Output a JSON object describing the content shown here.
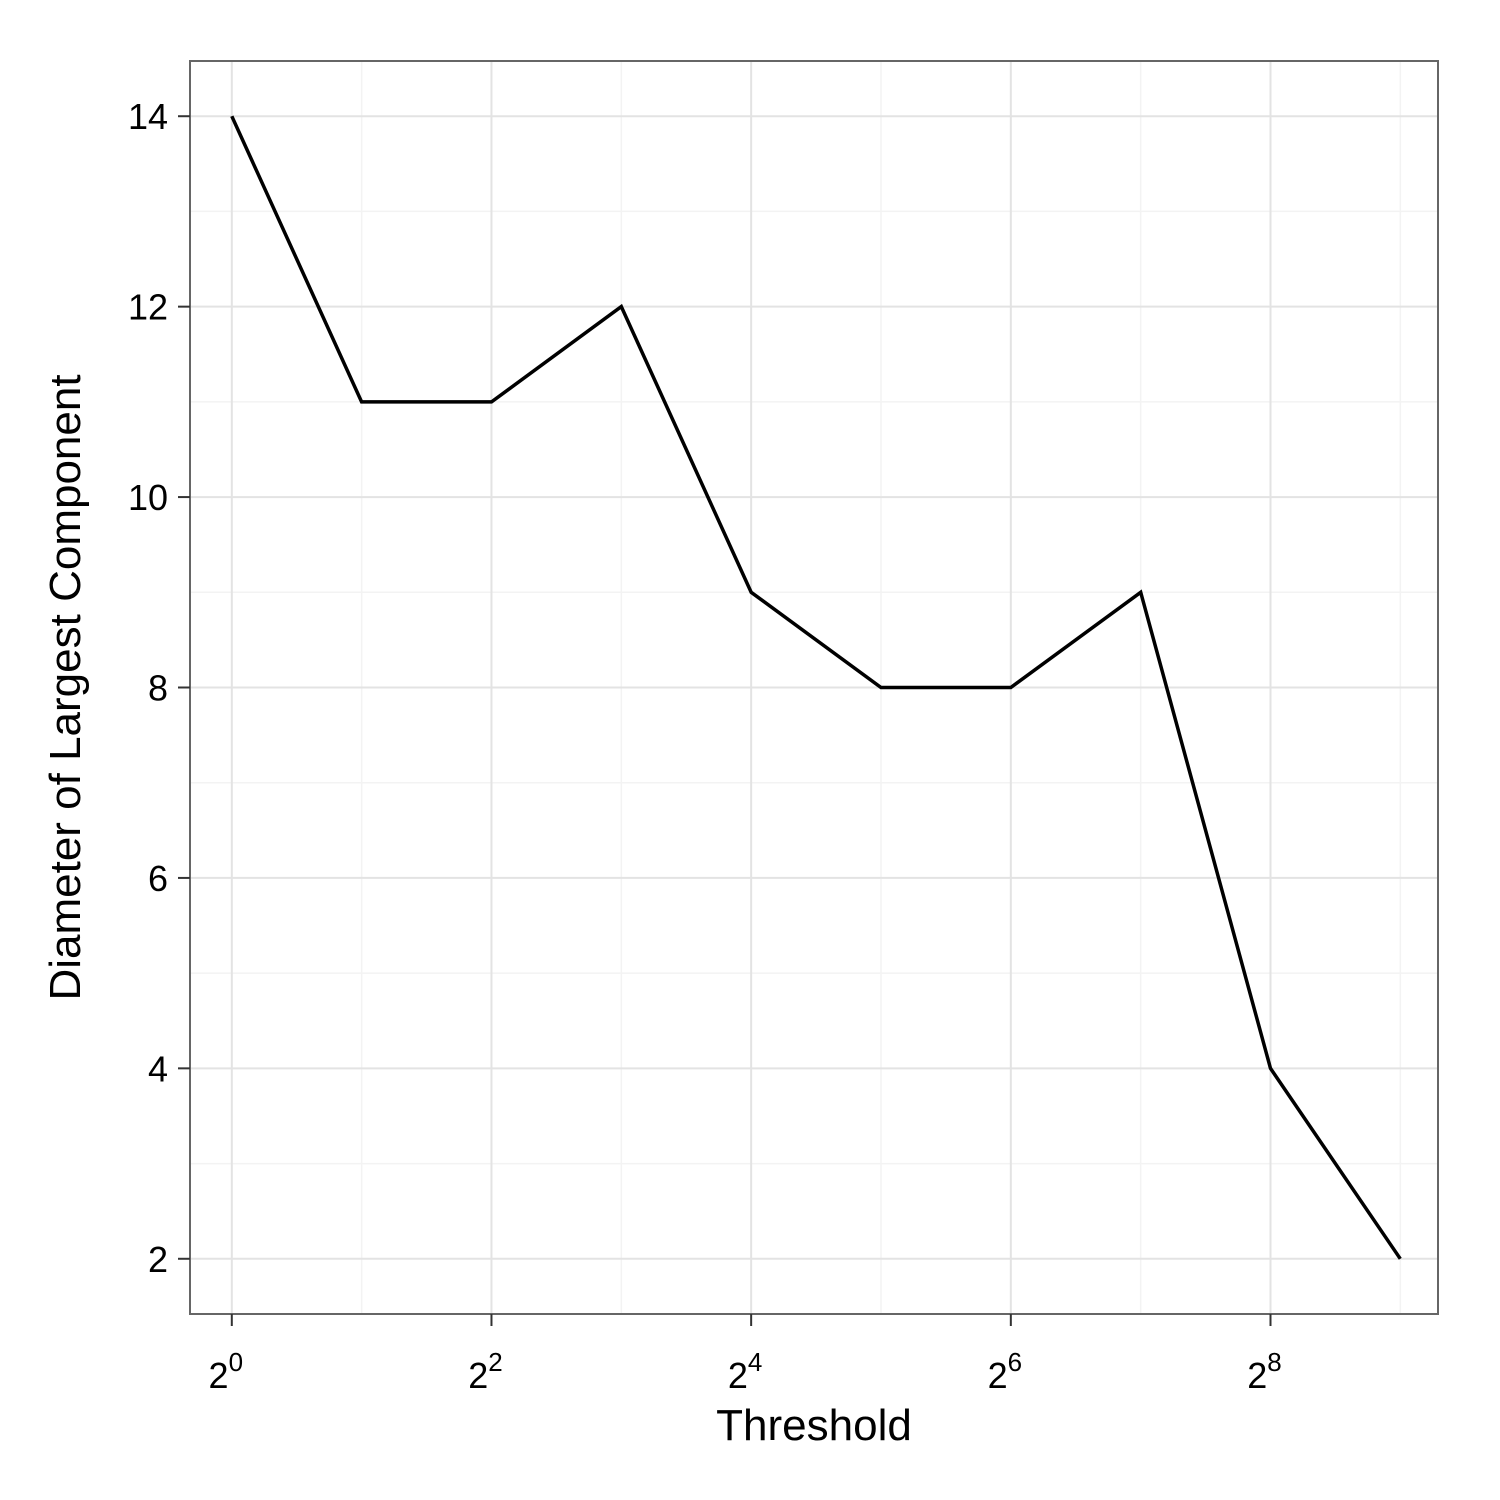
{
  "chart_data": {
    "type": "line",
    "title": "",
    "xlabel": "Threshold",
    "ylabel": "Diameter of Largest Component",
    "x_scale": "log2",
    "x_base": 2,
    "x_tick_exponents": [
      "0",
      "2",
      "4",
      "6",
      "8"
    ],
    "x_tick_values": [
      1,
      4,
      16,
      64,
      256
    ],
    "y_ticks": [
      "2",
      "4",
      "6",
      "8",
      "10",
      "12",
      "14"
    ],
    "xlim": [
      0.8,
      626
    ],
    "ylim": [
      1.42,
      14.58
    ],
    "grid": true,
    "series": [
      {
        "x": [
          1,
          2,
          4,
          8,
          16,
          32,
          64,
          128,
          256,
          512
        ],
        "y": [
          14,
          11,
          11,
          12,
          9,
          8,
          8,
          9,
          4,
          2
        ]
      }
    ],
    "colors": {
      "line": "#000000",
      "panel_border": "#666666",
      "grid_major": "#e3e3e3",
      "grid_minor": "#f3f3f3"
    }
  }
}
